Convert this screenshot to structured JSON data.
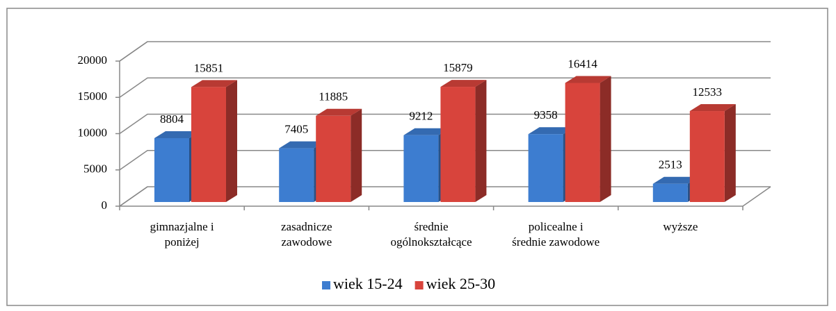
{
  "chart_data": {
    "type": "bar3d",
    "categories": [
      [
        "gimnazjalne i",
        "poniżej"
      ],
      [
        "zasadnicze",
        "zawodowe"
      ],
      [
        "średnie",
        "ogólnokształcące"
      ],
      [
        "policealne i",
        "średnie zawodowe"
      ],
      [
        "wyższe"
      ]
    ],
    "series": [
      {
        "name": "wiek 15-24",
        "color": "#3d7dd0",
        "values": [
          8804,
          7405,
          9212,
          9358,
          2513
        ]
      },
      {
        "name": "wiek 25-30",
        "color": "#d8443c",
        "values": [
          15851,
          11885,
          15879,
          16414,
          12533
        ]
      }
    ],
    "ylim": [
      0,
      20000
    ],
    "yticks": [
      0,
      5000,
      10000,
      15000,
      20000
    ],
    "grid": true,
    "legend": "bottom"
  }
}
